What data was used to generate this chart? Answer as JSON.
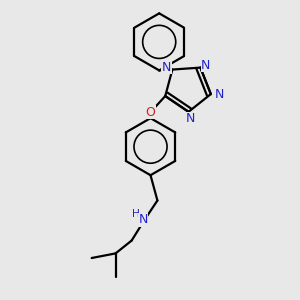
{
  "background_color": "#e8e8e8",
  "bond_color": "#000000",
  "nitrogen_color": "#2222cc",
  "oxygen_color": "#cc2222",
  "nh_color": "#2222cc",
  "line_width": 1.6,
  "fig_width": 3.0,
  "fig_height": 3.0,
  "dpi": 100,
  "xlim": [
    -2.5,
    2.5
  ],
  "ylim": [
    -3.2,
    3.2
  ],
  "font_size": 9.0
}
